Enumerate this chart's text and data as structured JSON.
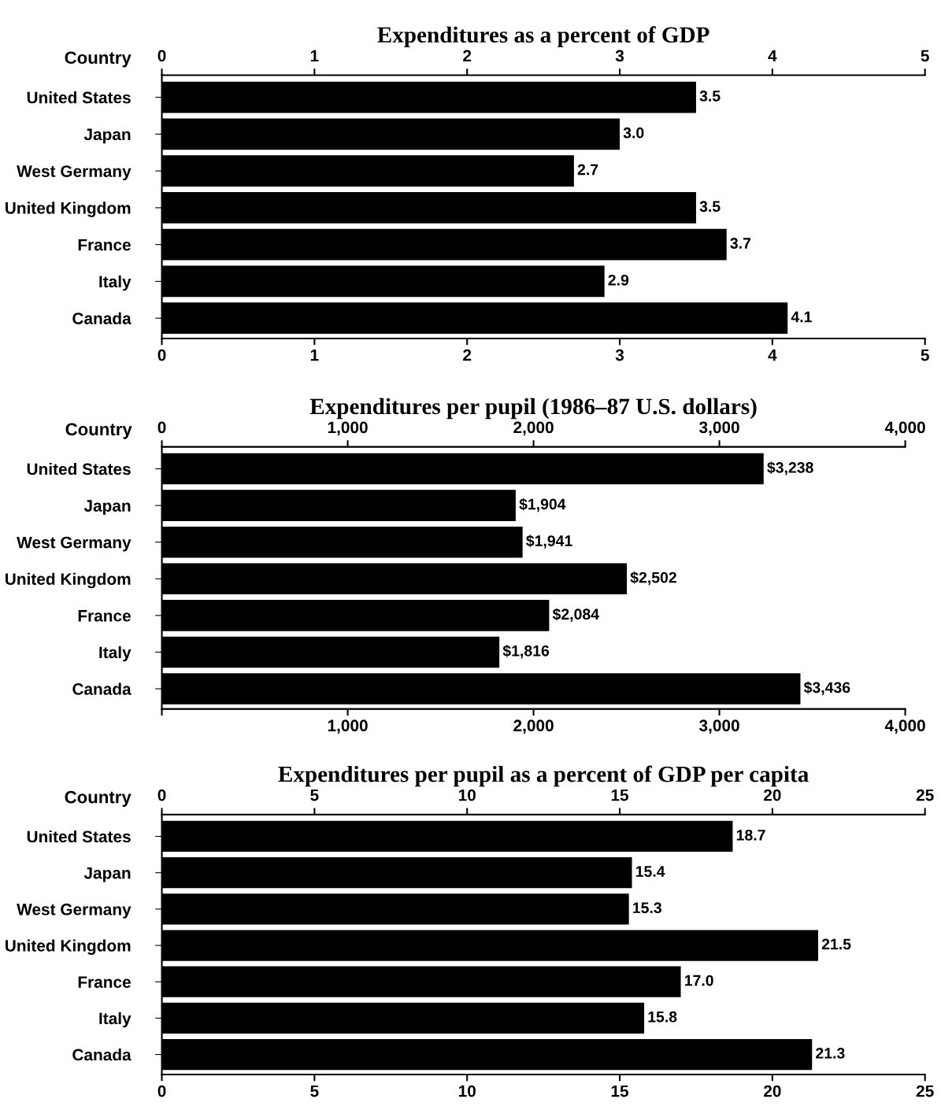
{
  "chart_data": [
    {
      "type": "bar",
      "orientation": "horizontal",
      "title": "Expenditures as a percent of GDP",
      "ylabel": "Country",
      "categories": [
        "United States",
        "Japan",
        "West Germany",
        "United Kingdom",
        "France",
        "Italy",
        "Canada"
      ],
      "values": [
        3.5,
        3.0,
        2.7,
        3.5,
        3.7,
        2.9,
        4.1
      ],
      "color": "#000000",
      "value_labels": [
        "3.5",
        "3.0",
        "2.7",
        "3.5",
        "3.7",
        "2.9",
        "4.1"
      ],
      "xlim": [
        0,
        5
      ],
      "xticks": [
        0,
        1,
        2,
        3,
        4,
        5
      ],
      "x2lim": [
        0,
        5
      ],
      "x2ticks": [
        0,
        1,
        2,
        3,
        4,
        5
      ],
      "grid": false,
      "legend": false
    },
    {
      "type": "bar",
      "orientation": "horizontal",
      "title": "Expenditures per pupil (1986–87 U.S. dollars)",
      "ylabel": "Country",
      "categories": [
        "United States",
        "Japan",
        "West Germany",
        "United Kingdom",
        "France",
        "Italy",
        "Canada"
      ],
      "values": [
        3238,
        1904,
        1941,
        2502,
        2084,
        1816,
        3436
      ],
      "color": "#000000",
      "value_labels": [
        "$3,238",
        "$1,904",
        "$1,941",
        "$2,502",
        "$2,084",
        "$1,816",
        "$3,436"
      ],
      "xlim": [
        0,
        4000
      ],
      "xticks": [
        {
          "value": 0,
          "label": null
        },
        {
          "value": 1000,
          "label": "1,000"
        },
        {
          "value": 2000,
          "label": "2,000"
        },
        {
          "value": 3000,
          "label": "3,000"
        },
        {
          "value": 4000,
          "label": "4,000"
        }
      ],
      "x2lim": [
        0,
        4000
      ],
      "x2ticks": [
        0,
        {
          "value": 1000,
          "label": "1,000"
        },
        {
          "value": 2000,
          "label": "2,000"
        },
        {
          "value": 3000,
          "label": "3,000"
        },
        {
          "value": 4000,
          "label": "4,000"
        }
      ],
      "grid": false,
      "legend": false
    },
    {
      "type": "bar",
      "orientation": "horizontal",
      "title": "Expenditures per pupil as a percent of GDP per capita",
      "ylabel": "Country",
      "categories": [
        "United States",
        "Japan",
        "West Germany",
        "United Kingdom",
        "France",
        "Italy",
        "Canada"
      ],
      "values": [
        18.7,
        15.4,
        15.3,
        21.5,
        17.0,
        15.8,
        21.3
      ],
      "color": "#000000",
      "value_labels": [
        "18.7",
        "15.4",
        "15.3",
        "21.5",
        "17.0",
        "15.8",
        "21.3"
      ],
      "xlim": [
        0,
        25
      ],
      "xticks": [
        0,
        5,
        10,
        15,
        20,
        25
      ],
      "x2lim": [
        0,
        25
      ],
      "x2ticks": [
        0,
        5,
        10,
        15,
        20,
        25
      ],
      "grid": false,
      "legend": false
    }
  ]
}
